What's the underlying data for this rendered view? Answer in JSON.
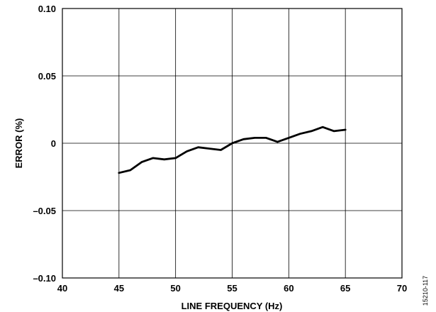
{
  "chart_data": {
    "type": "line",
    "title": "",
    "xlabel": "LINE FREQUENCY (Hz)",
    "ylabel": "ERROR (%)",
    "xlim": [
      40,
      70
    ],
    "ylim": [
      -0.1,
      0.1
    ],
    "grid": true,
    "x_ticks": [
      40,
      45,
      50,
      55,
      60,
      65,
      70
    ],
    "x_tick_labels": [
      "40",
      "45",
      "50",
      "55",
      "60",
      "65",
      "70"
    ],
    "y_ticks": [
      0.1,
      0.05,
      0,
      -0.05,
      -0.1
    ],
    "y_tick_labels": [
      "0.10",
      "0.05",
      "0",
      "–0.05",
      "–0.10"
    ],
    "series": [
      {
        "x": [
          45,
          46,
          47,
          48,
          49,
          50,
          51,
          52,
          53,
          54,
          55,
          56,
          57,
          58,
          59,
          60,
          61,
          62,
          63,
          64,
          65
        ],
        "y": [
          -0.022,
          -0.02,
          -0.014,
          -0.011,
          -0.012,
          -0.011,
          -0.006,
          -0.003,
          -0.004,
          -0.005,
          0.0,
          0.003,
          0.004,
          0.004,
          0.001,
          0.004,
          0.007,
          0.009,
          0.012,
          0.009,
          0.01
        ],
        "color": "#000000"
      }
    ],
    "figure_id": "15210-117"
  }
}
